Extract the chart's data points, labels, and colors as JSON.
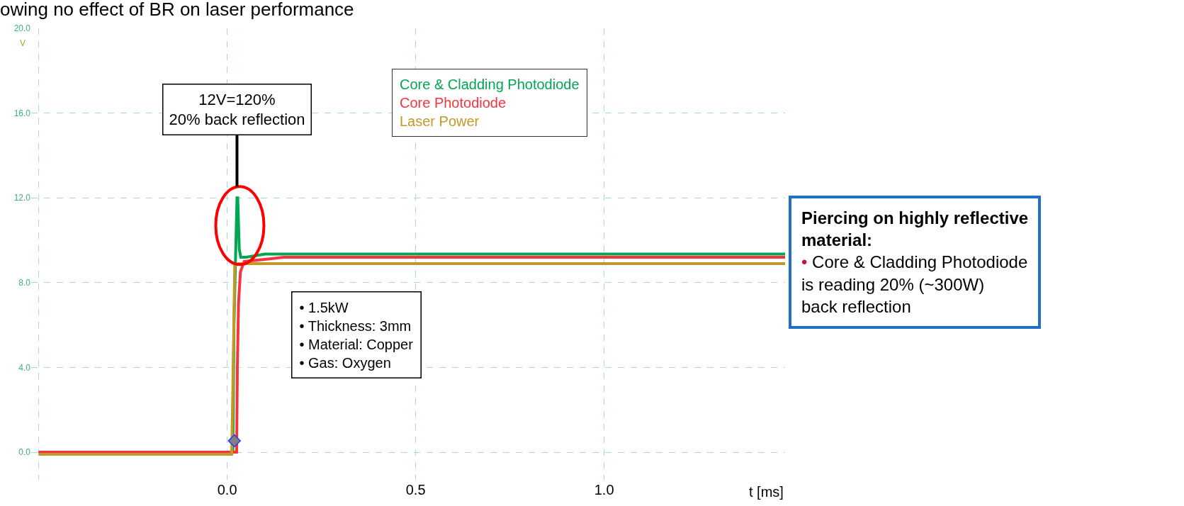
{
  "chart_data": {
    "type": "line",
    "title": "owing no effect of BR on laser performance",
    "xlabel": "t [ms]",
    "ylabel": "V",
    "xlim": [
      -0.52,
      1.48
    ],
    "xticks": [
      {
        "value": -0.5,
        "label": null
      },
      {
        "value": 0,
        "label": "0.0"
      },
      {
        "value": 0.5,
        "label": "0.5"
      },
      {
        "value": 1.0,
        "label": "1.0"
      }
    ],
    "ylim": [
      -1.3,
      20
    ],
    "yticks": [
      {
        "value": 0,
        "label": "0.0"
      },
      {
        "value": 4,
        "label": "4.0"
      },
      {
        "value": 8,
        "label": "8.0"
      },
      {
        "value": 12,
        "label": "12.0"
      },
      {
        "value": 16,
        "label": "16.0"
      },
      {
        "value": 20,
        "label": "20.0"
      }
    ],
    "grid": true,
    "series": [
      {
        "name": "Core & Cladding Photodiode",
        "color": "#00a651",
        "x": [
          -0.5,
          0.015,
          0.018,
          0.022,
          0.026,
          0.028,
          0.032,
          0.036,
          0.05,
          0.1,
          0.2,
          0.5,
          1.0,
          1.48
        ],
        "values": [
          0,
          0,
          6,
          9.0,
          12.0,
          12.0,
          9.6,
          9.2,
          9.2,
          9.35,
          9.35,
          9.35,
          9.35,
          9.35
        ]
      },
      {
        "name": "Core Photodiode",
        "color": "#f8333c",
        "x": [
          -0.5,
          0.025,
          0.027,
          0.03,
          0.035,
          0.045,
          0.1,
          0.15,
          0.5,
          1.0,
          1.48
        ],
        "values": [
          0,
          0,
          4,
          7,
          8.5,
          9.0,
          9.1,
          9.2,
          9.2,
          9.2,
          9.2
        ]
      },
      {
        "name": "Laser Power",
        "color": "#c09a28",
        "x": [
          -0.5,
          0.012,
          0.015,
          0.02,
          0.03,
          0.1,
          1.0,
          1.48
        ],
        "values": [
          -0.1,
          -0.1,
          3,
          8.8,
          8.9,
          8.9,
          8.9,
          8.9
        ]
      },
      {
        "type": "scatter",
        "marker": "diamond",
        "color": "#808080",
        "x": [
          0.019
        ],
        "values": [
          0.54
        ]
      }
    ],
    "annotations": [
      {
        "text": "12V=120%\n20% back reflection",
        "x": 0.026,
        "y": 12.0
      },
      "• 1.5kW\n• Thickness: 3mm\n• Material: Copper\n• Gas: Oxygen",
      "Piercing on highly reflective\nmaterial:\n• Core & Cladding Photodiode\nis reading 20% (~300W)\nback reflection"
    ]
  }
}
